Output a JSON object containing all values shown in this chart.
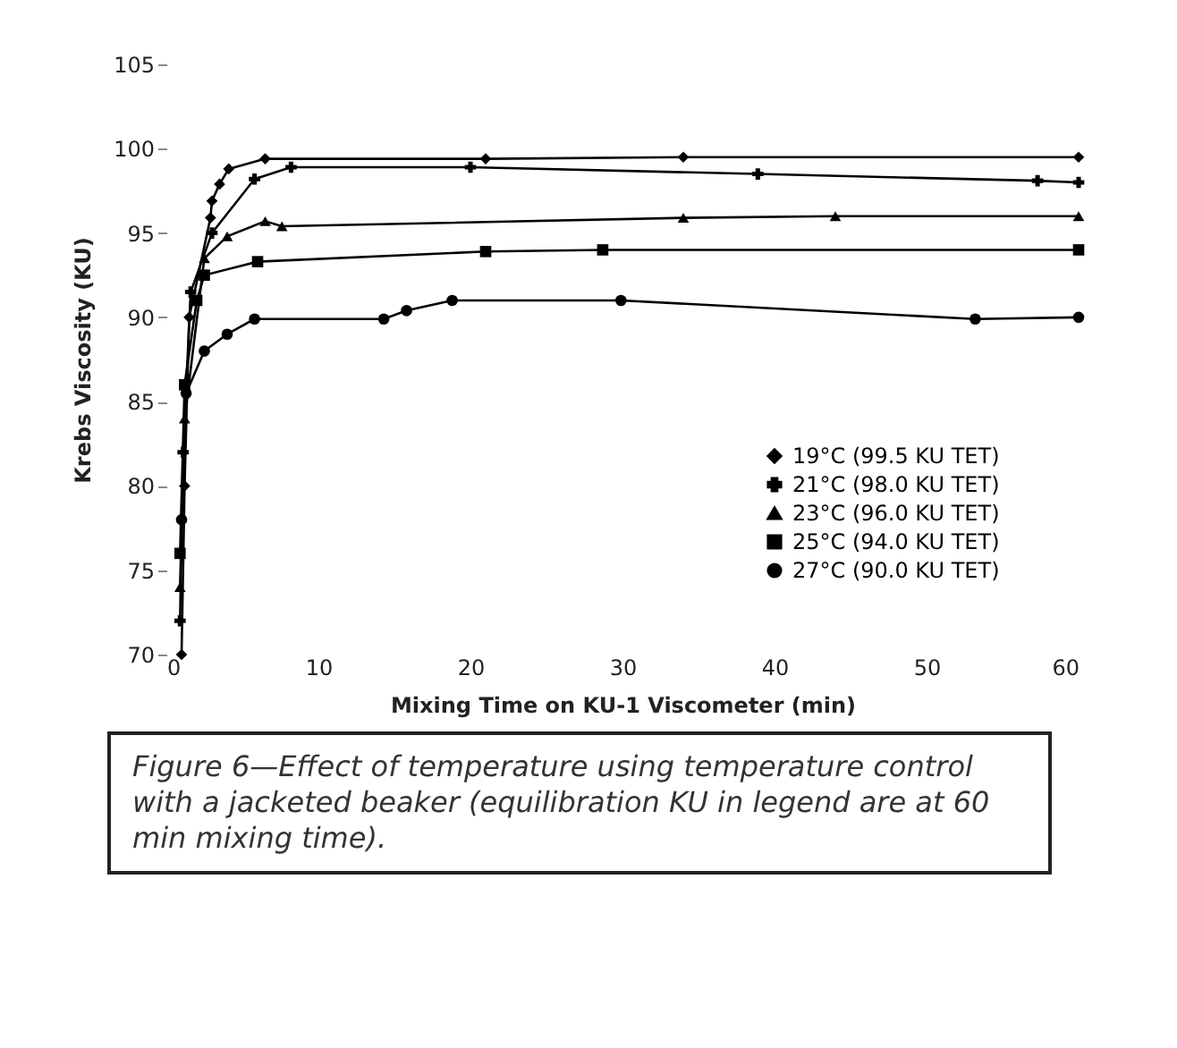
{
  "chart_data": {
    "type": "line",
    "xlabel": "Mixing Time on KU-1 Viscometer (min)",
    "ylabel": "Krebs Viscosity (KU)",
    "xlim": [
      0,
      60
    ],
    "xticks": [
      0,
      10,
      20,
      30,
      40,
      50,
      60
    ],
    "ylim": [
      70,
      105
    ],
    "yticks": [
      70,
      75,
      80,
      85,
      90,
      95,
      100,
      105
    ],
    "grid": false,
    "legend": "bottom right",
    "annotations": [
      "Figure 6—Effect of temperature using temperature control with a jacketed beaker (equilibration KU in legend are at 60 min mixing time)."
    ],
    "series": [
      {
        "name": "19°C  (99.5 KU TET)",
        "color": "#000000",
        "marker": "diamond",
        "x": [
          1,
          1.2,
          1.5,
          2.9,
          3,
          3.5,
          4.1,
          6.5,
          21,
          34,
          60
        ],
        "values": [
          70,
          80,
          90,
          95.9,
          96.9,
          97.9,
          98.8,
          99.4,
          99.4,
          99.5,
          99.5
        ]
      },
      {
        "name": "21°C  (98.0 KU TET)",
        "color": "#000000",
        "marker": "cross",
        "x": [
          0.9,
          1.1,
          1.6,
          3,
          5.8,
          8.2,
          20,
          38.9,
          57.3,
          60
        ],
        "values": [
          72,
          82,
          91.5,
          95,
          98.2,
          98.9,
          98.9,
          98.5,
          98.1,
          98
        ]
      },
      {
        "name": "23°C  (96.0 KU TET)",
        "color": "#000000",
        "marker": "triangle",
        "x": [
          0.9,
          1.2,
          2.5,
          4,
          6.5,
          7.6,
          34,
          44,
          60
        ],
        "values": [
          74,
          84,
          93.5,
          94.8,
          95.7,
          95.4,
          95.9,
          96,
          96
        ]
      },
      {
        "name": "25°C  (94.0 KU TET)",
        "color": "#000000",
        "marker": "square",
        "x": [
          0.9,
          1.2,
          2,
          2.5,
          6,
          21,
          28.7,
          60
        ],
        "values": [
          76,
          86,
          91,
          92.5,
          93.3,
          93.9,
          94,
          94
        ]
      },
      {
        "name": "27°C  (90.0 KU TET)",
        "color": "#000000",
        "marker": "circle",
        "x": [
          1,
          1.3,
          2.5,
          4,
          5.8,
          14.3,
          15.8,
          18.8,
          29.9,
          53.2,
          60
        ],
        "values": [
          78,
          85.5,
          88,
          89,
          89.9,
          89.9,
          90.4,
          91,
          91,
          89.9,
          90
        ]
      }
    ]
  }
}
